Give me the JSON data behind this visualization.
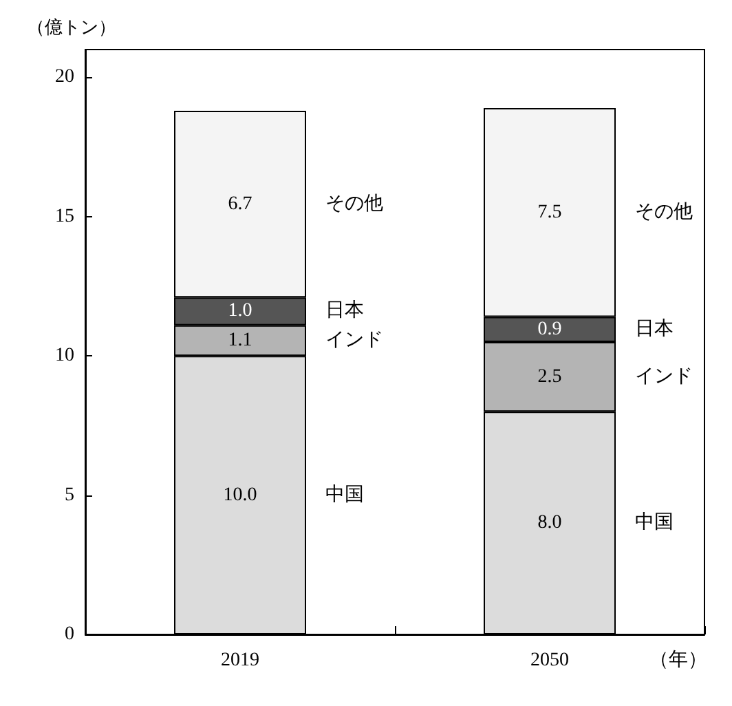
{
  "chart_data": {
    "type": "bar",
    "stacked": true,
    "ylabel": "（億トン）",
    "xlabel": "（年）",
    "categories": [
      "2019",
      "2050"
    ],
    "series": [
      {
        "name": "中国",
        "color": "#dcdcdc",
        "values": [
          10.0,
          8.0
        ],
        "value_labels": [
          "10.0",
          "8.0"
        ]
      },
      {
        "name": "インド",
        "color": "#b4b4b4",
        "values": [
          1.1,
          2.5
        ],
        "value_labels": [
          "1.1",
          "2.5"
        ]
      },
      {
        "name": "日本",
        "color": "#555555",
        "values": [
          1.0,
          0.9
        ],
        "value_labels": [
          "1.0",
          "0.9"
        ]
      },
      {
        "name": "その他",
        "color": "#f4f4f4",
        "values": [
          6.7,
          7.5
        ],
        "value_labels": [
          "6.7",
          "7.5"
        ]
      }
    ],
    "ylim": [
      0,
      21
    ],
    "yticks": [
      0,
      5,
      10,
      15,
      20
    ],
    "grid": false,
    "legend": false
  }
}
